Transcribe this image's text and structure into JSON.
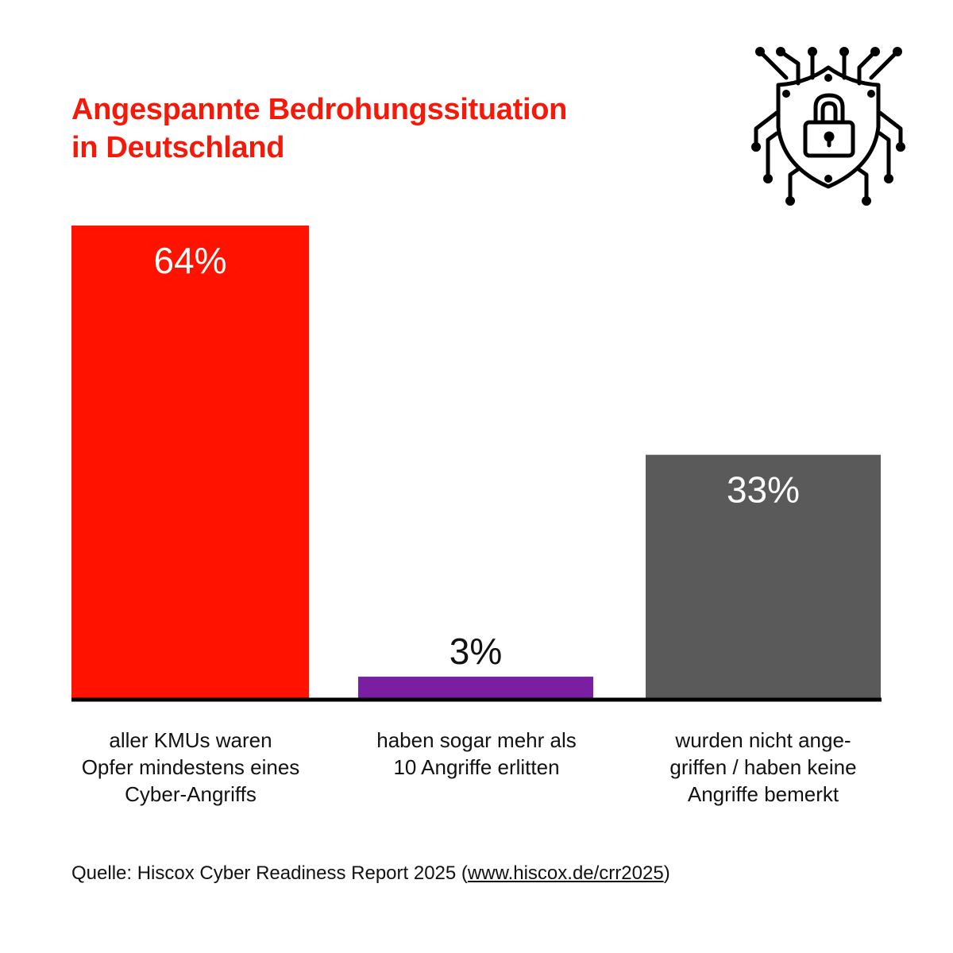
{
  "title": [
    "Angespannte Bedrohungssituation",
    "in Deutschland"
  ],
  "chart_data": {
    "type": "bar",
    "categories": [
      [
        "aller KMUs waren",
        "Opfer mindestens eines",
        "Cyber-Angriffs"
      ],
      [
        "haben sogar mehr als",
        "10 Angriffe erlitten"
      ],
      [
        "wurden nicht ange-",
        "griffen / haben keine",
        "Angriffe bemerkt"
      ]
    ],
    "values": [
      64,
      3,
      33
    ],
    "data_labels": [
      "64%",
      "3%",
      "33%"
    ],
    "colors": [
      "#ff1200",
      "#7b1fa2",
      "#5a5a5a"
    ],
    "label_colors": [
      "#ffffff",
      "#111111",
      "#ffffff"
    ],
    "unit": "%",
    "ylim": [
      0,
      64
    ],
    "grid": false
  },
  "icon": "shield-lock-circuit-icon",
  "source": {
    "prefix": "Quelle: Hiscox Cyber Readiness Report 2025 (",
    "link": "www.hiscox.de/crr2025",
    "suffix": ")"
  }
}
